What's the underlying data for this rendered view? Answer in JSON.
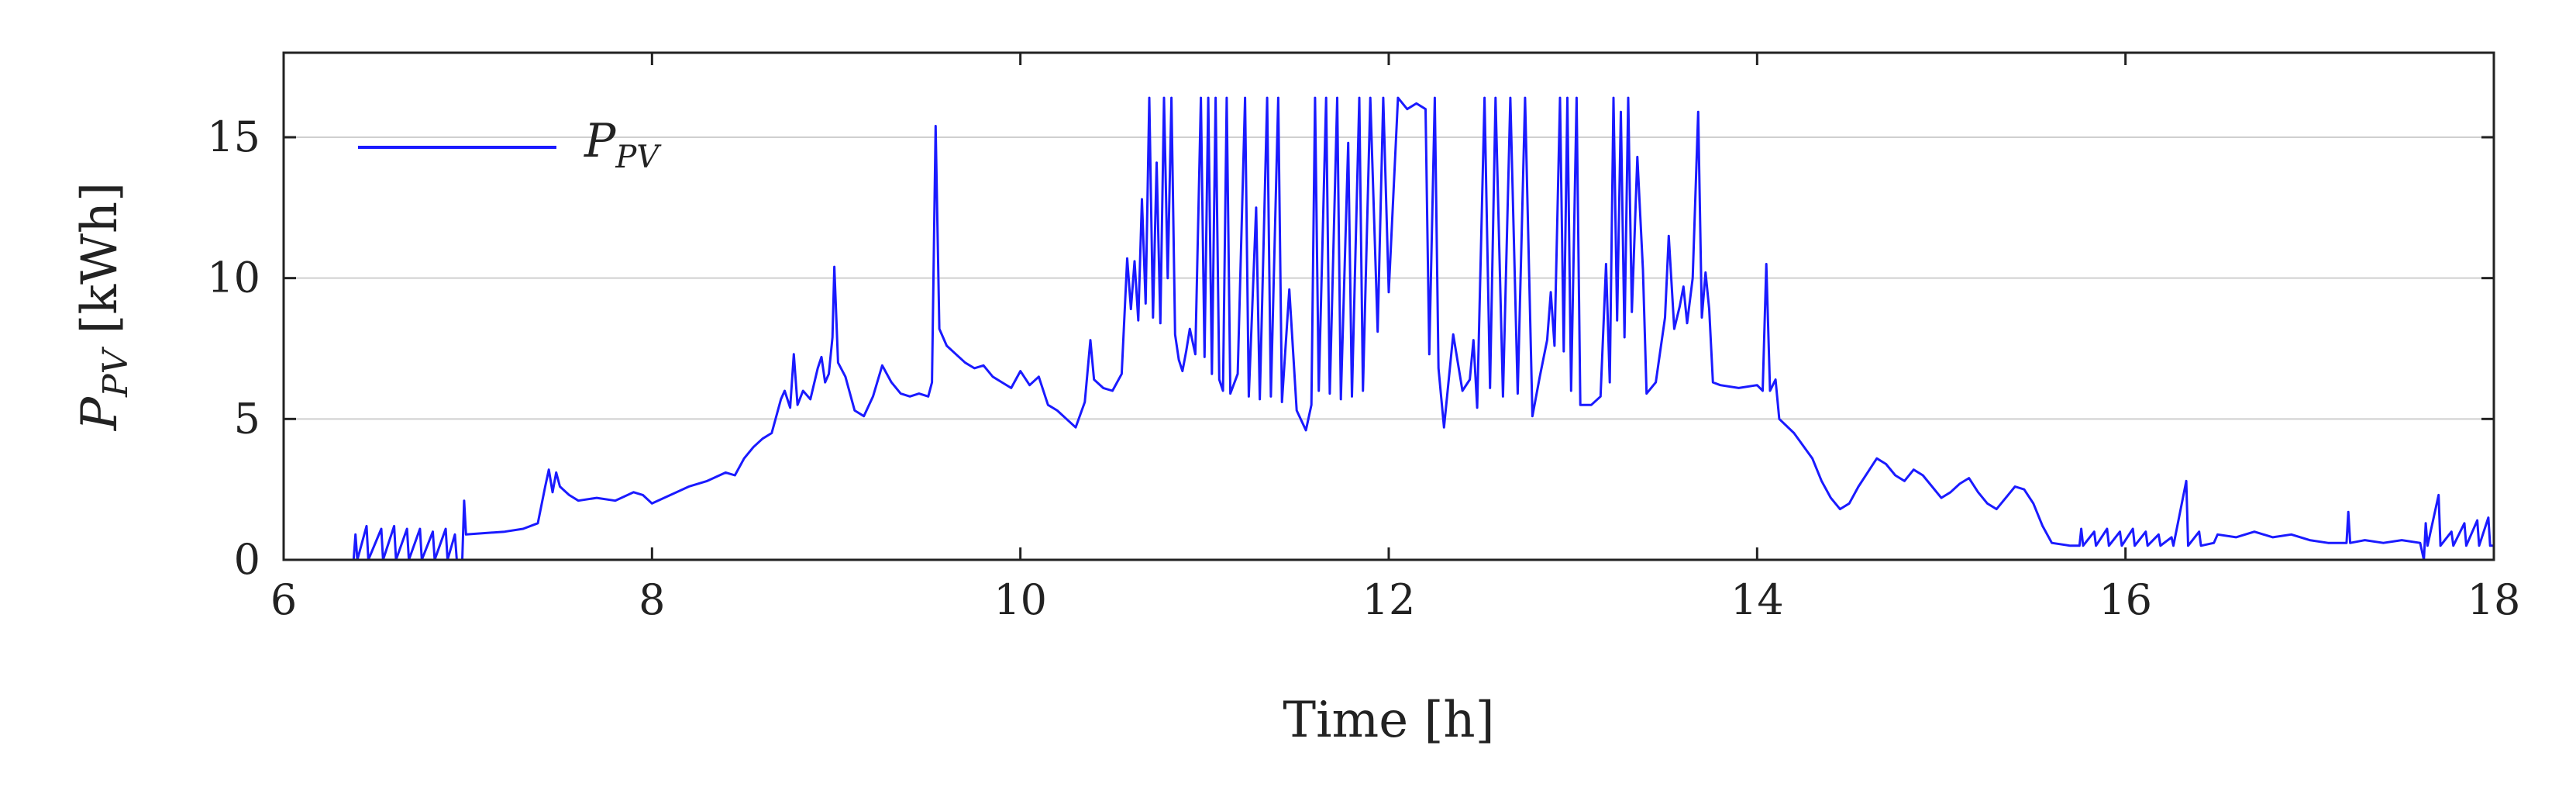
{
  "chart_data": {
    "type": "line",
    "title": "",
    "xlabel": "Time [h]",
    "ylabel": {
      "main": "P",
      "sub": "PV",
      "unit": "[kWh]"
    },
    "xlim": [
      6,
      18
    ],
    "ylim": [
      0,
      18
    ],
    "x_ticks": [
      6,
      8,
      10,
      12,
      14,
      16,
      18
    ],
    "x_tick_labels": [
      "6",
      "8",
      "10",
      "12",
      "14",
      "16",
      "18"
    ],
    "y_ticks": [
      0,
      5,
      10,
      15
    ],
    "y_tick_labels": [
      "0",
      "5",
      "10",
      "15"
    ],
    "grid": "y-major",
    "legend": {
      "position": "top-left",
      "entry_main": "P",
      "entry_sub": "PV"
    },
    "series": [
      {
        "name": "P_PV",
        "color": "#1a1aff",
        "points": [
          [
            6.0,
            0
          ],
          [
            6.38,
            0
          ],
          [
            6.39,
            0.9
          ],
          [
            6.4,
            0
          ],
          [
            6.45,
            1.2
          ],
          [
            6.46,
            0
          ],
          [
            6.53,
            1.1
          ],
          [
            6.54,
            0
          ],
          [
            6.6,
            1.2
          ],
          [
            6.61,
            0
          ],
          [
            6.67,
            1.1
          ],
          [
            6.68,
            0
          ],
          [
            6.74,
            1.1
          ],
          [
            6.75,
            0
          ],
          [
            6.81,
            1.0
          ],
          [
            6.82,
            0
          ],
          [
            6.88,
            1.1
          ],
          [
            6.89,
            0
          ],
          [
            6.93,
            0.9
          ],
          [
            6.94,
            0
          ],
          [
            6.97,
            0
          ],
          [
            6.98,
            2.1
          ],
          [
            6.99,
            0.9
          ],
          [
            7.2,
            1.0
          ],
          [
            7.3,
            1.1
          ],
          [
            7.38,
            1.3
          ],
          [
            7.42,
            2.6
          ],
          [
            7.44,
            3.2
          ],
          [
            7.46,
            2.4
          ],
          [
            7.48,
            3.1
          ],
          [
            7.5,
            2.6
          ],
          [
            7.55,
            2.3
          ],
          [
            7.6,
            2.1
          ],
          [
            7.7,
            2.2
          ],
          [
            7.8,
            2.1
          ],
          [
            7.9,
            2.4
          ],
          [
            7.95,
            2.3
          ],
          [
            8.0,
            2.0
          ],
          [
            8.1,
            2.3
          ],
          [
            8.2,
            2.6
          ],
          [
            8.3,
            2.8
          ],
          [
            8.4,
            3.1
          ],
          [
            8.45,
            3.0
          ],
          [
            8.5,
            3.6
          ],
          [
            8.55,
            4.0
          ],
          [
            8.6,
            4.3
          ],
          [
            8.65,
            4.5
          ],
          [
            8.7,
            5.7
          ],
          [
            8.72,
            6.0
          ],
          [
            8.75,
            5.4
          ],
          [
            8.77,
            7.3
          ],
          [
            8.79,
            5.5
          ],
          [
            8.82,
            6.0
          ],
          [
            8.86,
            5.7
          ],
          [
            8.9,
            6.8
          ],
          [
            8.92,
            7.2
          ],
          [
            8.94,
            6.3
          ],
          [
            8.96,
            6.6
          ],
          [
            8.98,
            7.9
          ],
          [
            8.99,
            10.4
          ],
          [
            9.01,
            7.0
          ],
          [
            9.05,
            6.5
          ],
          [
            9.1,
            5.3
          ],
          [
            9.15,
            5.1
          ],
          [
            9.2,
            5.8
          ],
          [
            9.25,
            6.9
          ],
          [
            9.3,
            6.3
          ],
          [
            9.35,
            5.9
          ],
          [
            9.4,
            5.8
          ],
          [
            9.45,
            5.9
          ],
          [
            9.5,
            5.8
          ],
          [
            9.52,
            6.3
          ],
          [
            9.54,
            15.4
          ],
          [
            9.56,
            8.2
          ],
          [
            9.6,
            7.6
          ],
          [
            9.65,
            7.3
          ],
          [
            9.7,
            7.0
          ],
          [
            9.75,
            6.8
          ],
          [
            9.8,
            6.9
          ],
          [
            9.85,
            6.5
          ],
          [
            9.9,
            6.3
          ],
          [
            9.95,
            6.1
          ],
          [
            10.0,
            6.7
          ],
          [
            10.05,
            6.2
          ],
          [
            10.1,
            6.5
          ],
          [
            10.15,
            5.5
          ],
          [
            10.2,
            5.3
          ],
          [
            10.25,
            5.0
          ],
          [
            10.3,
            4.7
          ],
          [
            10.35,
            5.6
          ],
          [
            10.38,
            7.8
          ],
          [
            10.4,
            6.4
          ],
          [
            10.45,
            6.1
          ],
          [
            10.5,
            6.0
          ],
          [
            10.55,
            6.6
          ],
          [
            10.58,
            10.7
          ],
          [
            10.6,
            8.9
          ],
          [
            10.62,
            10.6
          ],
          [
            10.64,
            8.5
          ],
          [
            10.66,
            12.8
          ],
          [
            10.68,
            9.1
          ],
          [
            10.7,
            16.4
          ],
          [
            10.72,
            8.6
          ],
          [
            10.74,
            14.1
          ],
          [
            10.76,
            8.4
          ],
          [
            10.78,
            16.4
          ],
          [
            10.8,
            10.0
          ],
          [
            10.82,
            16.4
          ],
          [
            10.84,
            8.0
          ],
          [
            10.86,
            7.1
          ],
          [
            10.88,
            6.7
          ],
          [
            10.9,
            7.4
          ],
          [
            10.92,
            8.2
          ],
          [
            10.95,
            7.3
          ],
          [
            10.98,
            16.4
          ],
          [
            11.0,
            7.2
          ],
          [
            11.02,
            16.4
          ],
          [
            11.04,
            6.6
          ],
          [
            11.06,
            16.4
          ],
          [
            11.08,
            6.4
          ],
          [
            11.1,
            6.0
          ],
          [
            11.12,
            16.4
          ],
          [
            11.14,
            5.9
          ],
          [
            11.18,
            6.6
          ],
          [
            11.22,
            16.4
          ],
          [
            11.24,
            5.8
          ],
          [
            11.28,
            12.5
          ],
          [
            11.3,
            5.7
          ],
          [
            11.34,
            16.4
          ],
          [
            11.36,
            5.8
          ],
          [
            11.4,
            16.4
          ],
          [
            11.42,
            5.6
          ],
          [
            11.46,
            9.6
          ],
          [
            11.5,
            5.3
          ],
          [
            11.55,
            4.6
          ],
          [
            11.58,
            5.5
          ],
          [
            11.6,
            16.4
          ],
          [
            11.62,
            6.0
          ],
          [
            11.66,
            16.4
          ],
          [
            11.68,
            5.9
          ],
          [
            11.72,
            16.4
          ],
          [
            11.74,
            5.7
          ],
          [
            11.78,
            14.8
          ],
          [
            11.8,
            5.8
          ],
          [
            11.84,
            16.4
          ],
          [
            11.86,
            6.0
          ],
          [
            11.9,
            16.4
          ],
          [
            11.94,
            8.1
          ],
          [
            11.97,
            16.4
          ],
          [
            12.0,
            9.5
          ],
          [
            12.05,
            16.4
          ],
          [
            12.1,
            16.0
          ],
          [
            12.15,
            16.2
          ],
          [
            12.2,
            16.0
          ],
          [
            12.22,
            7.3
          ],
          [
            12.25,
            16.4
          ],
          [
            12.27,
            6.8
          ],
          [
            12.3,
            4.7
          ],
          [
            12.35,
            8.0
          ],
          [
            12.4,
            6.0
          ],
          [
            12.44,
            6.4
          ],
          [
            12.46,
            7.8
          ],
          [
            12.48,
            5.4
          ],
          [
            12.52,
            16.4
          ],
          [
            12.55,
            6.1
          ],
          [
            12.58,
            16.4
          ],
          [
            12.62,
            5.8
          ],
          [
            12.66,
            16.4
          ],
          [
            12.7,
            5.9
          ],
          [
            12.74,
            16.4
          ],
          [
            12.78,
            5.1
          ],
          [
            12.82,
            6.5
          ],
          [
            12.86,
            7.8
          ],
          [
            12.88,
            9.5
          ],
          [
            12.9,
            7.6
          ],
          [
            12.93,
            16.4
          ],
          [
            12.95,
            7.4
          ],
          [
            12.97,
            16.4
          ],
          [
            12.99,
            6.0
          ],
          [
            13.02,
            16.4
          ],
          [
            13.04,
            5.5
          ],
          [
            13.1,
            5.5
          ],
          [
            13.15,
            5.8
          ],
          [
            13.18,
            10.5
          ],
          [
            13.2,
            6.3
          ],
          [
            13.22,
            16.4
          ],
          [
            13.24,
            8.5
          ],
          [
            13.26,
            15.9
          ],
          [
            13.28,
            7.9
          ],
          [
            13.3,
            16.4
          ],
          [
            13.32,
            8.8
          ],
          [
            13.35,
            14.3
          ],
          [
            13.38,
            10.3
          ],
          [
            13.4,
            5.9
          ],
          [
            13.45,
            6.3
          ],
          [
            13.5,
            8.6
          ],
          [
            13.52,
            11.5
          ],
          [
            13.55,
            8.2
          ],
          [
            13.58,
            9.0
          ],
          [
            13.6,
            9.7
          ],
          [
            13.62,
            8.4
          ],
          [
            13.65,
            10.0
          ],
          [
            13.68,
            15.9
          ],
          [
            13.7,
            8.6
          ],
          [
            13.72,
            10.2
          ],
          [
            13.74,
            8.9
          ],
          [
            13.76,
            6.3
          ],
          [
            13.8,
            6.2
          ],
          [
            13.9,
            6.1
          ],
          [
            14.0,
            6.2
          ],
          [
            14.03,
            6.0
          ],
          [
            14.05,
            10.5
          ],
          [
            14.07,
            6.0
          ],
          [
            14.1,
            6.4
          ],
          [
            14.12,
            5.0
          ],
          [
            14.2,
            4.5
          ],
          [
            14.3,
            3.6
          ],
          [
            14.35,
            2.8
          ],
          [
            14.4,
            2.2
          ],
          [
            14.45,
            1.8
          ],
          [
            14.5,
            2.0
          ],
          [
            14.55,
            2.6
          ],
          [
            14.6,
            3.1
          ],
          [
            14.65,
            3.6
          ],
          [
            14.7,
            3.4
          ],
          [
            14.75,
            3.0
          ],
          [
            14.8,
            2.8
          ],
          [
            14.85,
            3.2
          ],
          [
            14.9,
            3.0
          ],
          [
            14.95,
            2.6
          ],
          [
            15.0,
            2.2
          ],
          [
            15.05,
            2.4
          ],
          [
            15.1,
            2.7
          ],
          [
            15.15,
            2.9
          ],
          [
            15.2,
            2.4
          ],
          [
            15.25,
            2.0
          ],
          [
            15.3,
            1.8
          ],
          [
            15.35,
            2.2
          ],
          [
            15.4,
            2.6
          ],
          [
            15.45,
            2.5
          ],
          [
            15.5,
            2.0
          ],
          [
            15.55,
            1.2
          ],
          [
            15.6,
            0.6
          ],
          [
            15.7,
            0.5
          ],
          [
            15.75,
            0.5
          ],
          [
            15.76,
            1.1
          ],
          [
            15.77,
            0.5
          ],
          [
            15.83,
            1.0
          ],
          [
            15.84,
            0.5
          ],
          [
            15.9,
            1.1
          ],
          [
            15.91,
            0.5
          ],
          [
            15.97,
            1.0
          ],
          [
            15.98,
            0.5
          ],
          [
            16.04,
            1.1
          ],
          [
            16.05,
            0.5
          ],
          [
            16.11,
            1.0
          ],
          [
            16.12,
            0.5
          ],
          [
            16.18,
            0.9
          ],
          [
            16.19,
            0.5
          ],
          [
            16.25,
            0.8
          ],
          [
            16.26,
            0.5
          ],
          [
            16.33,
            2.8
          ],
          [
            16.34,
            0.5
          ],
          [
            16.4,
            1.0
          ],
          [
            16.41,
            0.5
          ],
          [
            16.48,
            0.6
          ],
          [
            16.5,
            0.9
          ],
          [
            16.6,
            0.8
          ],
          [
            16.7,
            1.0
          ],
          [
            16.8,
            0.8
          ],
          [
            16.9,
            0.9
          ],
          [
            17.0,
            0.7
          ],
          [
            17.1,
            0.6
          ],
          [
            17.2,
            0.6
          ],
          [
            17.21,
            1.7
          ],
          [
            17.22,
            0.6
          ],
          [
            17.3,
            0.7
          ],
          [
            17.4,
            0.6
          ],
          [
            17.5,
            0.7
          ],
          [
            17.6,
            0.6
          ],
          [
            17.62,
            0.0
          ],
          [
            17.63,
            1.3
          ],
          [
            17.64,
            0.5
          ],
          [
            17.7,
            2.3
          ],
          [
            17.71,
            0.5
          ],
          [
            17.77,
            1.0
          ],
          [
            17.78,
            0.5
          ],
          [
            17.84,
            1.3
          ],
          [
            17.85,
            0.5
          ],
          [
            17.91,
            1.4
          ],
          [
            17.92,
            0.5
          ],
          [
            17.97,
            1.5
          ],
          [
            17.98,
            0.5
          ],
          [
            18.0,
            0.5
          ]
        ]
      }
    ]
  }
}
